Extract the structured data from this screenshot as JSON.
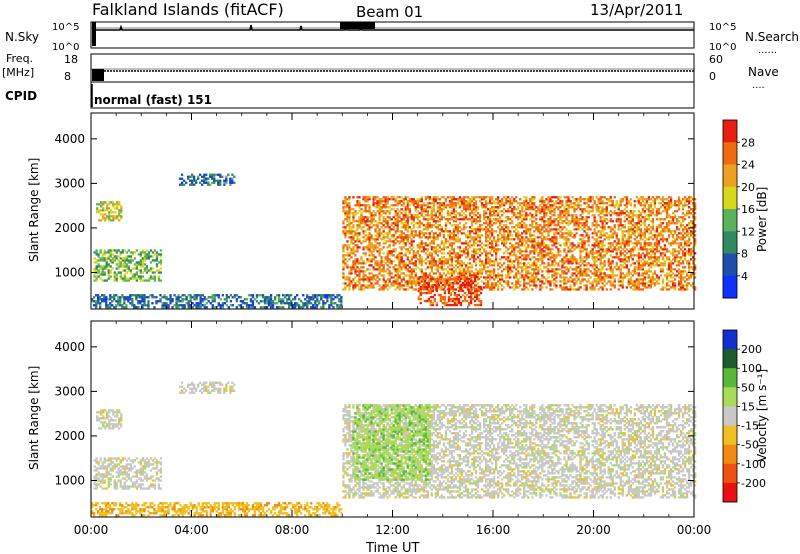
{
  "header": {
    "station": "Falkland Islands (fitACF)",
    "beam": "Beam 01",
    "date": "13/Apr/2011"
  },
  "strips": {
    "nsky_label": "N.Sky",
    "nsearch_label": "N.Search",
    "nsky_ticks": [
      "10^5",
      "10^0"
    ],
    "nsearch_ticks": [
      "10^5",
      "10^0"
    ],
    "freq_label_top": "Freq.",
    "freq_label_unit": "[MHz]",
    "freq_ticks": [
      "18",
      "8"
    ],
    "nave_label": "Nave",
    "nave_ticks": [
      "60",
      "0"
    ],
    "cpid_label": "CPID",
    "cpid_text": "normal (fast) 151"
  },
  "chart_data": [
    {
      "type": "heatmap",
      "name": "power",
      "xlabel": "",
      "ylabel": "Slant Range [km]",
      "x_ticks": [
        "00:00",
        "04:00",
        "08:00",
        "12:00",
        "16:00",
        "20:00",
        "00:00"
      ],
      "x_range_hours": [
        0,
        24
      ],
      "y_ticks": [
        1000,
        2000,
        3000,
        4000
      ],
      "y_range": [
        180,
        4580
      ],
      "colorbar_label": "Power [dB]",
      "colorbar_ticks": [
        4,
        8,
        12,
        16,
        20,
        24,
        28
      ],
      "colorbar_colors": [
        "#1030ff",
        "#1e4fb0",
        "#2f8a60",
        "#5ab35a",
        "#d8d81a",
        "#f0a020",
        "#f06a10",
        "#e81e10"
      ],
      "echo_regions": [
        {
          "t0": 0.2,
          "t1": 1.2,
          "r0": 2150,
          "r1": 2600,
          "level": 18
        },
        {
          "t0": 0.1,
          "t1": 2.8,
          "r0": 800,
          "r1": 1500,
          "level": 14
        },
        {
          "t0": 3.5,
          "t1": 5.7,
          "r0": 2950,
          "r1": 3200,
          "level": 8
        },
        {
          "t0": 10.0,
          "t1": 24.0,
          "r0": 600,
          "r1": 2700,
          "level": 24
        },
        {
          "t0": 13.0,
          "t1": 15.5,
          "r0": 250,
          "r1": 900,
          "level": 28
        },
        {
          "t0": 0.0,
          "t1": 10.0,
          "r0": 200,
          "r1": 500,
          "level": 8
        }
      ]
    },
    {
      "type": "heatmap",
      "name": "velocity",
      "xlabel": "Time UT",
      "ylabel": "Slant Range [km]",
      "x_ticks": [
        "00:00",
        "04:00",
        "08:00",
        "12:00",
        "16:00",
        "20:00",
        "00:00"
      ],
      "x_range_hours": [
        0,
        24
      ],
      "y_ticks": [
        1000,
        2000,
        3000,
        4000
      ],
      "y_range": [
        180,
        4580
      ],
      "colorbar_label": "Velocity [m s⁻¹]",
      "colorbar_ticks": [
        200,
        100,
        50,
        15,
        -15,
        -50,
        -100,
        -200
      ],
      "colorbar_colors": [
        "#1030d0",
        "#1e5a30",
        "#58b838",
        "#a6dc5a",
        "#c8c8c8",
        "#f0c020",
        "#f08a10",
        "#f05010",
        "#e81010"
      ],
      "echo_regions": [
        {
          "t0": 0.2,
          "t1": 1.2,
          "r0": 2150,
          "r1": 2600,
          "level": 0
        },
        {
          "t0": 0.1,
          "t1": 2.8,
          "r0": 800,
          "r1": 1500,
          "level": 0
        },
        {
          "t0": 3.5,
          "t1": 5.7,
          "r0": 2950,
          "r1": 3200,
          "level": 0
        },
        {
          "t0": 10.0,
          "t1": 24.0,
          "r0": 600,
          "r1": 2700,
          "level": 0
        },
        {
          "t0": 10.4,
          "t1": 13.5,
          "r0": 1000,
          "r1": 2700,
          "level": 40
        },
        {
          "t0": 0.0,
          "t1": 10.0,
          "r0": 200,
          "r1": 500,
          "level": -40
        }
      ]
    }
  ]
}
